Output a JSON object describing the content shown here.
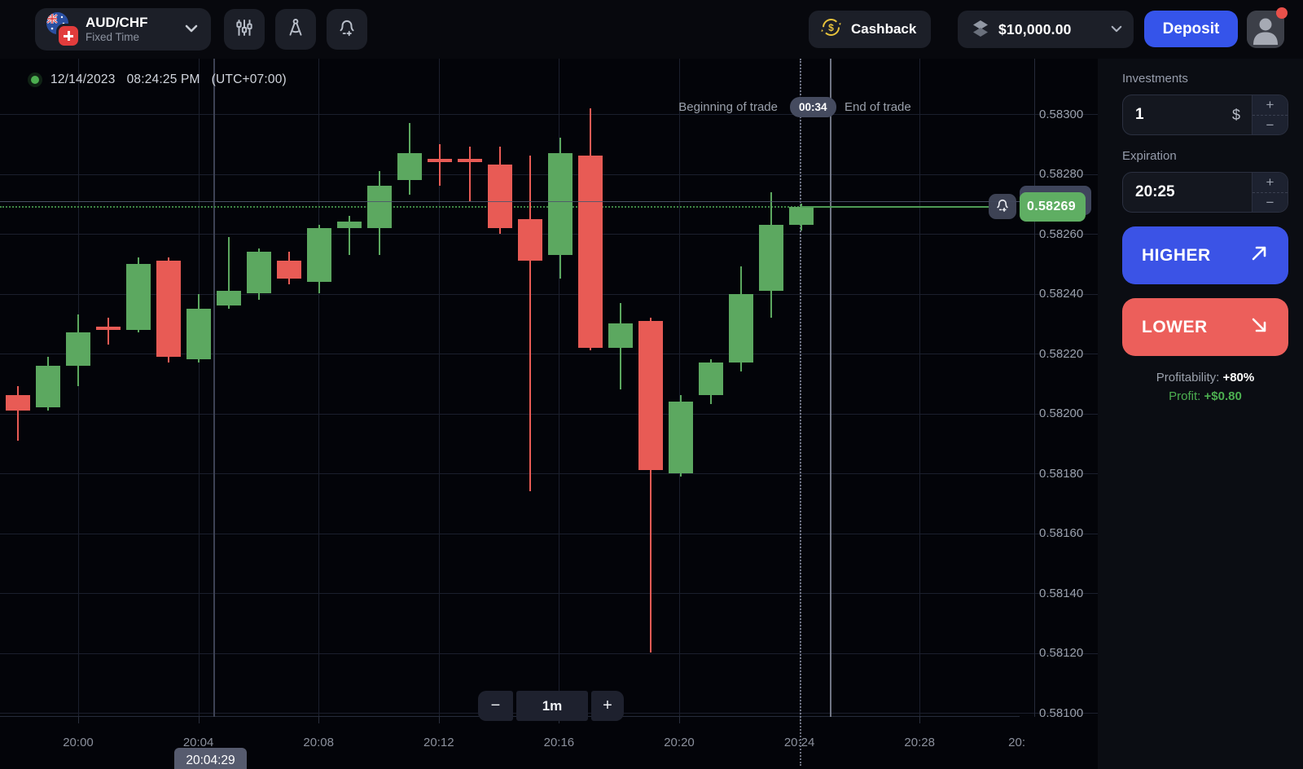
{
  "topbar": {
    "pair": {
      "symbol": "AUD/CHF",
      "mode": "Fixed Time"
    },
    "cashback_label": "Cashback",
    "balance": "$10,000.00",
    "deposit_label": "Deposit"
  },
  "chart": {
    "date": "12/14/2023",
    "time": "08:24:25 PM",
    "timezone": "(UTC+07:00)",
    "trade": {
      "beginning_label": "Beginning of trade",
      "countdown": "00:34",
      "end_label": "End of trade"
    },
    "zoom": {
      "minus": "−",
      "interval": "1m",
      "plus": "+"
    },
    "time_tooltip": "20:04:29",
    "current_price_tag": "0.58269"
  },
  "chart_data": {
    "type": "candlestick",
    "title": "AUD/CHF 1-minute candles",
    "interval": "1m",
    "grid": true,
    "ylim": [
      0.581,
      0.583
    ],
    "price_ticks": [
      "0.58300",
      "0.58280",
      "0.58260",
      "0.58240",
      "0.58220",
      "0.58200",
      "0.58180",
      "0.58160",
      "0.58140",
      "0.58120",
      "0.58100"
    ],
    "x_ticks": [
      "20:00",
      "20:04",
      "20:08",
      "20:12",
      "20:16",
      "20:20",
      "20:24",
      "20:28",
      "20:"
    ],
    "current_price": 0.58269,
    "trade_open_price": 0.58271,
    "trade_begin_time": "20:24",
    "trade_end_time": "20:25",
    "candles": [
      {
        "t": "19:58",
        "o": 0.58206,
        "h": 0.58209,
        "l": 0.58191,
        "c": 0.58201
      },
      {
        "t": "19:59",
        "o": 0.58202,
        "h": 0.58219,
        "l": 0.58201,
        "c": 0.58216
      },
      {
        "t": "20:00",
        "o": 0.58216,
        "h": 0.58233,
        "l": 0.58209,
        "c": 0.58227
      },
      {
        "t": "20:01",
        "o": 0.58229,
        "h": 0.58232,
        "l": 0.58223,
        "c": 0.58228
      },
      {
        "t": "20:02",
        "o": 0.58228,
        "h": 0.58252,
        "l": 0.58227,
        "c": 0.5825
      },
      {
        "t": "20:03",
        "o": 0.58251,
        "h": 0.58252,
        "l": 0.58217,
        "c": 0.58219
      },
      {
        "t": "20:04",
        "o": 0.58218,
        "h": 0.5824,
        "l": 0.58217,
        "c": 0.58235
      },
      {
        "t": "20:05",
        "o": 0.58236,
        "h": 0.58259,
        "l": 0.58235,
        "c": 0.58241
      },
      {
        "t": "20:06",
        "o": 0.5824,
        "h": 0.58255,
        "l": 0.58238,
        "c": 0.58254
      },
      {
        "t": "20:07",
        "o": 0.58251,
        "h": 0.58254,
        "l": 0.58243,
        "c": 0.58245
      },
      {
        "t": "20:08",
        "o": 0.58244,
        "h": 0.58263,
        "l": 0.5824,
        "c": 0.58262
      },
      {
        "t": "20:09",
        "o": 0.58262,
        "h": 0.58266,
        "l": 0.58253,
        "c": 0.58264
      },
      {
        "t": "20:10",
        "o": 0.58262,
        "h": 0.58281,
        "l": 0.58253,
        "c": 0.58276
      },
      {
        "t": "20:11",
        "o": 0.58278,
        "h": 0.58297,
        "l": 0.58273,
        "c": 0.58287
      },
      {
        "t": "20:12",
        "o": 0.58285,
        "h": 0.5829,
        "l": 0.58276,
        "c": 0.58284
      },
      {
        "t": "20:13",
        "o": 0.58285,
        "h": 0.58289,
        "l": 0.58271,
        "c": 0.58284
      },
      {
        "t": "20:14",
        "o": 0.58283,
        "h": 0.58289,
        "l": 0.5826,
        "c": 0.58262
      },
      {
        "t": "20:15",
        "o": 0.58265,
        "h": 0.58286,
        "l": 0.58174,
        "c": 0.58251
      },
      {
        "t": "20:16",
        "o": 0.58253,
        "h": 0.58292,
        "l": 0.58245,
        "c": 0.58287
      },
      {
        "t": "20:17",
        "o": 0.58286,
        "h": 0.58302,
        "l": 0.58221,
        "c": 0.58222
      },
      {
        "t": "20:18",
        "o": 0.58222,
        "h": 0.58237,
        "l": 0.58208,
        "c": 0.5823
      },
      {
        "t": "20:19",
        "o": 0.58231,
        "h": 0.58232,
        "l": 0.5812,
        "c": 0.58181
      },
      {
        "t": "20:20",
        "o": 0.5818,
        "h": 0.58206,
        "l": 0.58179,
        "c": 0.58204
      },
      {
        "t": "20:21",
        "o": 0.58206,
        "h": 0.58218,
        "l": 0.58203,
        "c": 0.58217
      },
      {
        "t": "20:22",
        "o": 0.58217,
        "h": 0.58249,
        "l": 0.58214,
        "c": 0.5824
      },
      {
        "t": "20:23",
        "o": 0.58241,
        "h": 0.58274,
        "l": 0.58232,
        "c": 0.58263
      },
      {
        "t": "20:24",
        "o": 0.58263,
        "h": 0.5827,
        "l": 0.58261,
        "c": 0.58269
      }
    ]
  },
  "sidebar": {
    "investments_label": "Investments",
    "investments_value": "1",
    "currency_symbol": "$",
    "expiration_label": "Expiration",
    "expiration_value": "20:25",
    "stepper": {
      "plus": "+",
      "minus": "−"
    },
    "higher_label": "HIGHER",
    "lower_label": "LOWER",
    "profitability_label": "Profitability:",
    "profitability_value": "+80%",
    "profit_label": "Profit:",
    "profit_value": "+$0.80"
  },
  "colors": {
    "candle_up": "#5ca860",
    "candle_down": "#e85b55",
    "higher_button": "#3b53e6",
    "lower_button": "#ec5f5b",
    "deposit_blue": "#3554ea",
    "accent_green": "#4caf50",
    "price_tag_green": "#5fae63",
    "cashback_yellow": "#e8c33c"
  }
}
